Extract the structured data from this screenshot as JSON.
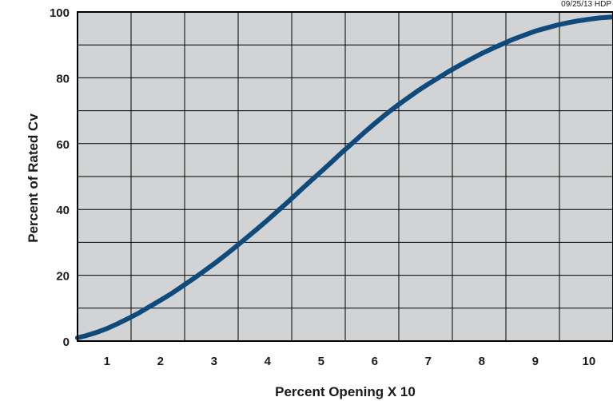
{
  "chart_data": {
    "type": "line",
    "stamp": "09/25/13 HDP",
    "xlabel": "Percent Opening X 10",
    "ylabel": "Percent of Rated Cv",
    "xlim": [
      0.45,
      10.45
    ],
    "ylim": [
      0,
      100
    ],
    "x_ticks": [
      "1",
      "2",
      "3",
      "4",
      "5",
      "6",
      "7",
      "8",
      "9",
      "10"
    ],
    "y_ticks": [
      "0",
      "20",
      "40",
      "60",
      "80",
      "100"
    ],
    "grid": true,
    "legend": "none",
    "colors": {
      "plot_background": "#d1d3d4",
      "grid": "#000000",
      "line": "#0e4a7c"
    },
    "series": [
      {
        "x": [
          0.45,
          0.6,
          0.8,
          1.0,
          1.2,
          1.4,
          1.6,
          1.8,
          2.0,
          2.2,
          2.4,
          2.6,
          2.8,
          3.0,
          3.2,
          3.4,
          3.6,
          3.8,
          4.0,
          4.2,
          4.4,
          4.6,
          4.8,
          5.0,
          5.2,
          5.4,
          5.6,
          5.8,
          6.0,
          6.2,
          6.4,
          6.6,
          6.8,
          7.0,
          7.2,
          7.4,
          7.6,
          7.8,
          8.0,
          8.2,
          8.4,
          8.6,
          8.8,
          9.0,
          9.2,
          9.4,
          9.6,
          9.8,
          10.0,
          10.2,
          10.45
        ],
        "values": [
          1,
          1.6,
          2.6,
          3.8,
          5.3,
          6.9,
          8.6,
          10.5,
          12.4,
          14.4,
          16.6,
          18.8,
          21.1,
          23.5,
          26.0,
          28.6,
          31.3,
          34.0,
          36.8,
          39.7,
          42.6,
          45.6,
          48.6,
          51.5,
          54.5,
          57.5,
          60.4,
          63.3,
          66.1,
          68.8,
          71.3,
          73.7,
          76.0,
          78.1,
          80.1,
          82.1,
          83.9,
          85.7,
          87.4,
          88.9,
          90.4,
          91.8,
          93.0,
          94.2,
          95.1,
          96.0,
          96.7,
          97.3,
          97.8,
          98.2,
          98.5
        ]
      }
    ]
  }
}
